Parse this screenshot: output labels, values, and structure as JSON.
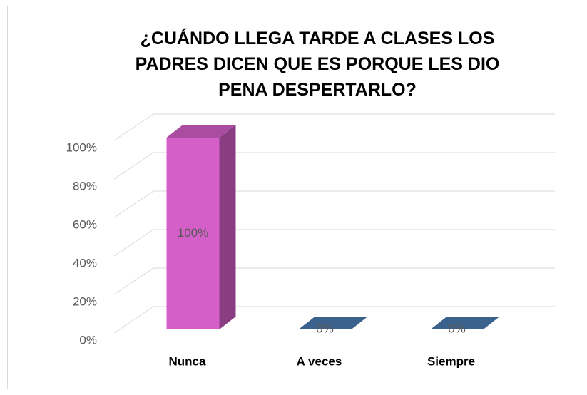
{
  "chart_data": {
    "type": "bar3d",
    "title": "¿CUÁNDO LLEGA TARDE A CLASES LOS PADRES DICEN QUE ES PORQUE LES DIO PENA DESPERTARLO?",
    "categories": [
      "Nunca",
      "A veces",
      "Siempre"
    ],
    "values": [
      100,
      0,
      0
    ],
    "value_labels": [
      "100%",
      "0%",
      "0%"
    ],
    "colors": [
      "#d45fc8",
      "#4a7ab0",
      "#4a7ab0"
    ],
    "ylim": [
      0,
      100
    ],
    "yticks": [
      {
        "value": 0,
        "label": "0%"
      },
      {
        "value": 20,
        "label": "20%"
      },
      {
        "value": 40,
        "label": "40%"
      },
      {
        "value": 60,
        "label": "60%"
      },
      {
        "value": 80,
        "label": "80%"
      },
      {
        "value": 100,
        "label": "100%"
      }
    ],
    "grid": true
  }
}
